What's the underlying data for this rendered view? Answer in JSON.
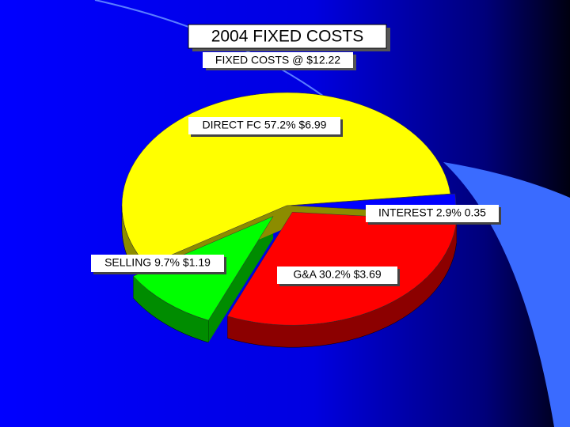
{
  "chart_data": {
    "type": "pie",
    "title": "2004 FIXED COSTS",
    "subtitle": "FIXED COSTS @ $12.22",
    "categories": [
      "INTEREST",
      "G&A",
      "SELLING",
      "DIRECT FC"
    ],
    "values": [
      2.9,
      30.2,
      9.7,
      57.2
    ],
    "value_labels": [
      "INTEREST 2.9% 0.35",
      "G&A 30.2% $3.69",
      "SELLING 9.7% $1.19",
      "DIRECT FC 57.2% $6.99"
    ],
    "colors": [
      "#0000ff",
      "#ff0000",
      "#00ff00",
      "#ffff00"
    ]
  }
}
